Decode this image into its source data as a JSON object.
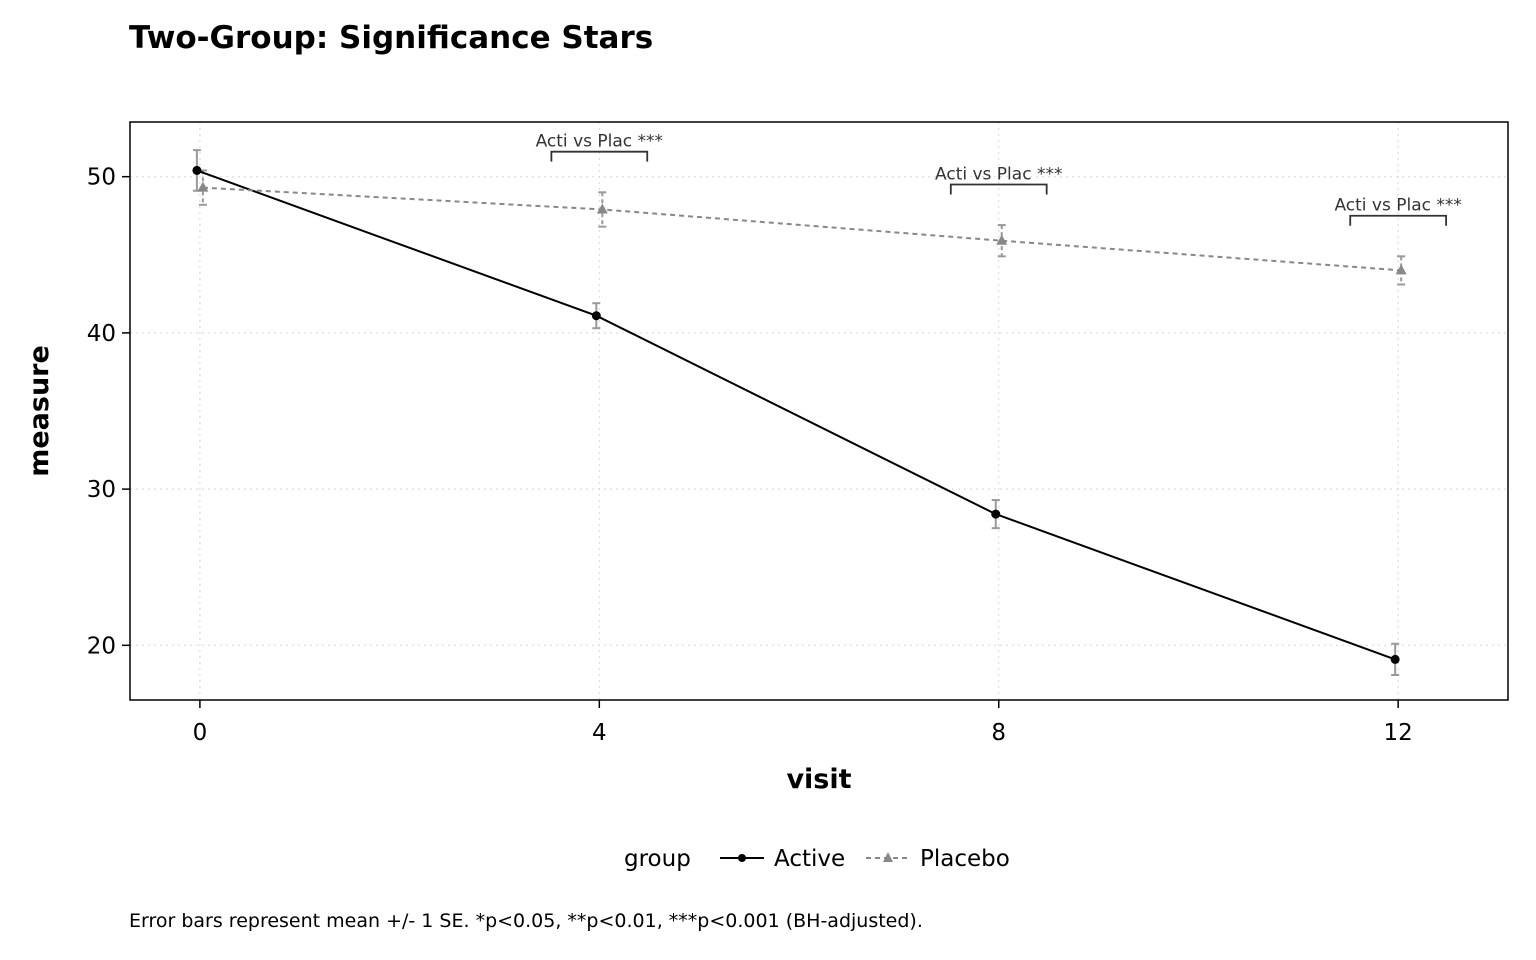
{
  "chart_data": {
    "type": "line",
    "title": "Two-Group: Significance Stars",
    "xlabel": "visit",
    "ylabel": "measure",
    "caption": "Error bars represent mean +/- 1 SE. *p<0.05, **p<0.01, ***p<0.001 (BH-adjusted).",
    "x": [
      0,
      4,
      8,
      12
    ],
    "x_ticks": [
      0,
      4,
      8,
      12
    ],
    "y_ticks": [
      20,
      30,
      40,
      50
    ],
    "xlim": [
      -0.7,
      13.1
    ],
    "ylim": [
      16.5,
      53.5
    ],
    "grid": true,
    "legend": {
      "title": "group",
      "placement": "bottom"
    },
    "series": [
      {
        "name": "Active",
        "marker": "circle",
        "linestyle": "solid",
        "color": "#000000",
        "dodge": -0.03,
        "values": [
          50.4,
          41.1,
          28.4,
          19.1
        ],
        "se": [
          1.3,
          0.8,
          0.9,
          1.0
        ]
      },
      {
        "name": "Placebo",
        "marker": "triangle",
        "linestyle": "dashed",
        "color": "#888888",
        "dodge": 0.03,
        "values": [
          49.3,
          47.9,
          45.9,
          44.0
        ],
        "se": [
          1.1,
          1.1,
          1.0,
          0.9
        ]
      }
    ],
    "annotations": [
      {
        "x": 4,
        "label": "Acti vs Plac ***",
        "y": 51.6
      },
      {
        "x": 8,
        "label": "Acti vs Plac ***",
        "y": 49.5
      },
      {
        "x": 12,
        "label": "Acti vs Plac ***",
        "y": 47.5
      }
    ]
  }
}
